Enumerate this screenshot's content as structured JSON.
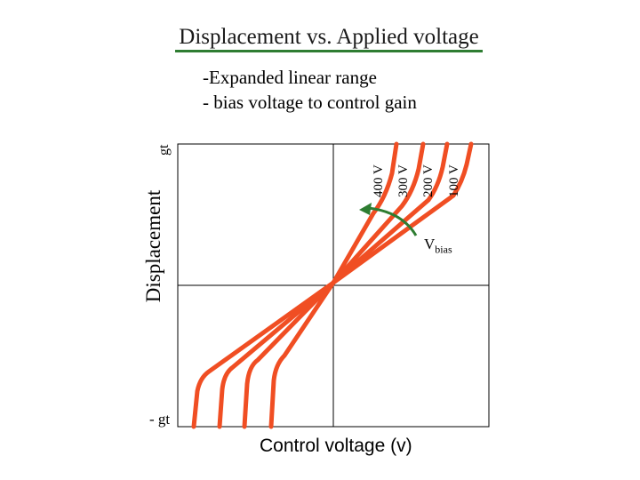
{
  "title": "Displacement vs. Applied voltage",
  "bullets": [
    "-Expanded linear range",
    "- bias voltage to control gain"
  ],
  "axes": {
    "y_label": "Displacement",
    "y_top": "gt",
    "y_bottom": "- gt",
    "x_label": "Control voltage (v)"
  },
  "voltage_labels": [
    "400 V",
    "300 V",
    "200 V",
    "100 V"
  ],
  "bias_label": {
    "main": "V",
    "sub": "bias"
  },
  "colors": {
    "curve": "#f04e23",
    "arrow": "#2e7d32",
    "axis": "#000000"
  }
}
